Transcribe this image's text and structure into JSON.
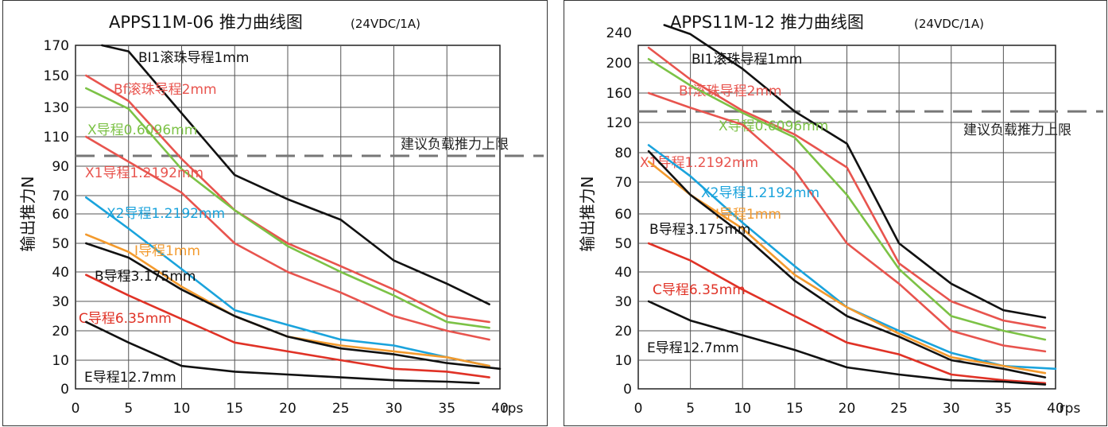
{
  "chart_data": [
    {
      "type": "line",
      "title": "APPS11M-06  推力曲线图",
      "subtitle": "(24VDC/1A)",
      "xlabel": "rps",
      "ylabel": "输出推力N",
      "x_ticks": [
        0,
        5,
        10,
        15,
        20,
        25,
        30,
        35,
        40
      ],
      "x_range": [
        0,
        40
      ],
      "y_ticks": [
        0,
        10,
        20,
        30,
        40,
        50,
        60,
        70,
        90,
        110,
        130,
        150,
        170
      ],
      "y_range": [
        0,
        170
      ],
      "grid": true,
      "limit_line": {
        "label": "建议负载推力上限",
        "value": 97
      },
      "series": [
        {
          "name": "BI1滚珠导程1mm",
          "color": "#111111",
          "x": [
            2.5,
            5,
            10,
            15,
            20,
            25,
            30,
            35,
            39
          ],
          "y": [
            170,
            166,
            126,
            84,
            68,
            58,
            44,
            36,
            29
          ]
        },
        {
          "name": "Bf滚珠导程2mm",
          "color": "#e8544e",
          "x": [
            1,
            5,
            10,
            15,
            20,
            25,
            30,
            35,
            39
          ],
          "y": [
            150,
            134,
            95,
            62,
            50,
            42,
            34,
            25,
            23
          ]
        },
        {
          "name": "X导程0.6096mm",
          "color": "#7cc246",
          "x": [
            1,
            5,
            10,
            15,
            20,
            25,
            30,
            35,
            39
          ],
          "y": [
            142,
            129,
            88,
            62,
            49,
            40,
            32,
            23,
            21
          ]
        },
        {
          "name": "X1导程1.2192mm",
          "color": "#e8544e",
          "x": [
            1,
            5,
            10,
            15,
            20,
            25,
            30,
            35,
            39
          ],
          "y": [
            110,
            93,
            72,
            50,
            40,
            33,
            25,
            20,
            17
          ]
        },
        {
          "name": "X2导程1.2192mm",
          "color": "#1aa3dc",
          "x": [
            1,
            5,
            10,
            15,
            20,
            25,
            30,
            35,
            39
          ],
          "y": [
            69,
            55,
            41,
            27,
            22,
            17,
            15,
            11,
            8
          ]
        },
        {
          "name": "I导程1mm",
          "color": "#f39a2d",
          "x": [
            1,
            5,
            10,
            15,
            20,
            25,
            30,
            35,
            39
          ],
          "y": [
            53,
            47,
            35,
            25,
            18,
            15,
            13,
            11,
            8
          ]
        },
        {
          "name": "B导程3.175mm",
          "color": "#111111",
          "x": [
            1,
            5,
            10,
            15,
            20,
            25,
            30,
            35,
            40
          ],
          "y": [
            50,
            45,
            34,
            25,
            18,
            14,
            12,
            9,
            7
          ]
        },
        {
          "name": "C导程6.35mm",
          "color": "#e03226",
          "x": [
            1,
            5,
            10,
            15,
            20,
            25,
            30,
            35,
            39
          ],
          "y": [
            39,
            32,
            24,
            16,
            13,
            10,
            7,
            6,
            4
          ]
        },
        {
          "name": "E导程12.7mm",
          "color": "#111111",
          "x": [
            1,
            5,
            10,
            15,
            20,
            25,
            30,
            35,
            38
          ],
          "y": [
            23,
            16,
            8,
            6,
            5,
            4,
            3,
            2.5,
            2
          ]
        }
      ]
    },
    {
      "type": "line",
      "title": "APPS11M-12  推力曲线图",
      "subtitle": "(24VDC/1A)",
      "xlabel": "rps",
      "ylabel": "输出推力N",
      "x_ticks": [
        0,
        5,
        10,
        15,
        20,
        25,
        30,
        35,
        40
      ],
      "x_range": [
        0,
        40
      ],
      "y_ticks": [
        0,
        10,
        20,
        30,
        40,
        50,
        60,
        70,
        80,
        120,
        160,
        200,
        240
      ],
      "y_range": [
        0,
        240
      ],
      "grid": true,
      "limit_line": {
        "label": "建议负载推力上限",
        "value": 135
      },
      "series": [
        {
          "name": "BI1滚珠导程1mm",
          "color": "#111111",
          "x": [
            2.5,
            5,
            10,
            15,
            20,
            25,
            30,
            35,
            39
          ],
          "y": [
            250,
            238,
            192,
            135,
            92,
            50,
            36,
            27,
            24.5
          ]
        },
        {
          "name": "Bf滚珠导程2mm",
          "color": "#e8544e",
          "x": [
            1,
            5,
            10,
            15,
            20,
            25,
            30,
            35,
            39
          ],
          "y": [
            220,
            178,
            136,
            104,
            75,
            43,
            30,
            23.5,
            21
          ]
        },
        {
          "name": "X导程0.6096mm",
          "color": "#7cc246",
          "x": [
            1,
            5,
            10,
            15,
            20,
            25,
            30,
            35,
            39
          ],
          "y": [
            205,
            170,
            133,
            100,
            66,
            41,
            25,
            20,
            17
          ]
        },
        {
          "name": "X1导程1.2192mm",
          "color": "#e8544e",
          "x": [
            1,
            5,
            10,
            15,
            20,
            25,
            30,
            35,
            39
          ],
          "y": [
            160,
            140,
            117,
            74,
            50,
            36,
            20,
            15,
            13
          ]
        },
        {
          "name": "X2导程1.2192mm",
          "color": "#1aa3dc",
          "x": [
            1,
            5,
            10,
            15,
            20,
            25,
            30,
            35,
            40
          ],
          "y": [
            90,
            72,
            57,
            42,
            28,
            20,
            12.5,
            8,
            7
          ]
        },
        {
          "name": "I导程1mm",
          "color": "#f39a2d",
          "x": [
            1,
            5,
            10,
            15,
            20,
            25,
            30,
            35,
            39
          ],
          "y": [
            77,
            66,
            55,
            39,
            28,
            19,
            11,
            8,
            5.5
          ]
        },
        {
          "name": "B导程3.175mm",
          "color": "#111111",
          "x": [
            1,
            5,
            10,
            15,
            20,
            25,
            30,
            35,
            39
          ],
          "y": [
            82,
            66,
            53,
            37,
            25,
            18,
            10,
            7,
            4
          ]
        },
        {
          "name": "C导程6.35mm",
          "color": "#e03226",
          "x": [
            1,
            5,
            10,
            15,
            20,
            25,
            30,
            35,
            39
          ],
          "y": [
            50,
            44,
            34,
            25,
            16,
            12,
            5,
            3,
            2
          ]
        },
        {
          "name": "E导程12.7mm",
          "color": "#111111",
          "x": [
            1,
            5,
            10,
            15,
            20,
            25,
            30,
            35,
            39
          ],
          "y": [
            30,
            23.5,
            18.5,
            13.5,
            7.5,
            5,
            3,
            2.5,
            1.5
          ]
        }
      ]
    }
  ]
}
